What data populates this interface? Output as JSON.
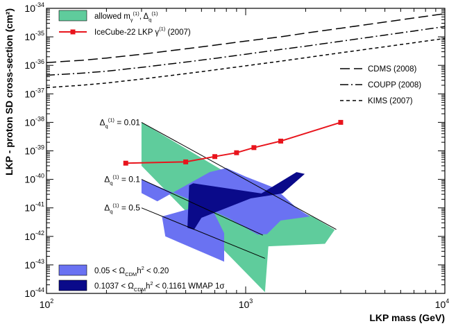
{
  "chart_data": {
    "type": "line",
    "xlabel": "LKP mass (GeV)",
    "ylabel": "LKP - proton SD cross-section (cm²)",
    "xscale": "log",
    "yscale": "log",
    "xlim": [
      100,
      10000
    ],
    "ylim": [
      1e-44,
      1e-34
    ],
    "x_ticks": [
      {
        "value": 100,
        "base": "10",
        "exp": "2"
      },
      {
        "value": 1000,
        "base": "10",
        "exp": "3"
      },
      {
        "value": 10000,
        "base": "10",
        "exp": "4"
      }
    ],
    "y_ticks": [
      {
        "value": 1e-44,
        "base": "10",
        "exp": "-44"
      },
      {
        "value": 1e-43,
        "base": "10",
        "exp": "-43"
      },
      {
        "value": 1e-42,
        "base": "10",
        "exp": "-42"
      },
      {
        "value": 1e-41,
        "base": "10",
        "exp": "-41"
      },
      {
        "value": 1e-40,
        "base": "10",
        "exp": "-40"
      },
      {
        "value": 1e-39,
        "base": "10",
        "exp": "-39"
      },
      {
        "value": 1e-38,
        "base": "10",
        "exp": "-38"
      },
      {
        "value": 1e-37,
        "base": "10",
        "exp": "-37"
      },
      {
        "value": 1e-36,
        "base": "10",
        "exp": "-36"
      },
      {
        "value": 1e-35,
        "base": "10",
        "exp": "-35"
      },
      {
        "value": 1e-34,
        "base": "10",
        "exp": "-34"
      }
    ],
    "colors": {
      "allowed": "#5fcc9c",
      "wmap_2sigma": "#6a72f2",
      "wmap_1sigma": "#0a0a8a",
      "icecube": "#e8141c",
      "limits": "#000000"
    },
    "series": [
      {
        "name": "CDMS (2008)",
        "style": "long-dash",
        "x": [
          100,
          150,
          200,
          300,
          500,
          700,
          1000,
          1500,
          2000,
          3000,
          5000,
          7000,
          10000
        ],
        "y": [
          1.25e-36,
          1.5e-36,
          1.8e-36,
          2.45e-36,
          3.8e-36,
          5.1e-36,
          7.1e-36,
          1e-35,
          1.35e-35,
          2e-35,
          3.3e-35,
          4.6e-35,
          6.5e-35
        ]
      },
      {
        "name": "COUPP (2008)",
        "style": "dash-dot",
        "x": [
          100,
          150,
          200,
          300,
          500,
          700,
          1000,
          1500,
          2000,
          3000,
          5000,
          7000,
          10000
        ],
        "y": [
          4.5e-37,
          5.3e-37,
          6.2e-37,
          8.5e-37,
          1.3e-36,
          1.75e-36,
          2.45e-36,
          3.6e-36,
          4.7e-36,
          7e-36,
          1.15e-35,
          1.6e-35,
          2.3e-35
        ]
      },
      {
        "name": "KIMS (2007)",
        "style": "short-dash",
        "x": [
          100,
          150,
          200,
          300,
          500,
          700,
          1000,
          1500,
          2000,
          3000,
          5000,
          7000,
          10000
        ],
        "y": [
          1.65e-37,
          2e-37,
          2.4e-37,
          3.3e-37,
          5.1e-37,
          6.9e-37,
          9.6e-37,
          1.4e-36,
          1.85e-36,
          2.75e-36,
          4.5e-36,
          6.2e-36,
          8.8e-36
        ]
      },
      {
        "name": "IceCube-22 LKP γ⁽¹⁾ (2007)",
        "style": "solid-square-markers",
        "x": [
          250,
          500,
          700,
          900,
          1100,
          1500,
          3000
        ],
        "y": [
          3.7e-40,
          4.1e-40,
          6.3e-40,
          8.6e-40,
          1.3e-39,
          2.2e-39,
          1e-38
        ]
      }
    ],
    "regions": [
      {
        "name": "allowed m_γ(1), Δ_q(1)",
        "color": "#5fcc9c",
        "polygon": [
          [
            300,
            1e-38
          ],
          [
            1200,
            3.2e-41
          ],
          [
            2200,
            4.6e-42
          ],
          [
            2800,
            1.7e-42
          ],
          [
            2500,
            5.5e-43
          ],
          [
            1300,
            4.5e-43
          ],
          [
            1250,
            1.1e-44
          ],
          [
            300,
            3e-40
          ]
        ]
      },
      {
        "name": "0.05 < Ω_CDM h² < 0.20",
        "color": "#6a72f2",
        "polygon": [
          [
            300,
            3.3e-41
          ],
          [
            360,
            1.7e-41
          ],
          [
            660,
            1.8e-40
          ],
          [
            800,
            2.5e-40
          ],
          [
            1000,
            1.25e-40
          ],
          [
            1400,
            5e-41
          ],
          [
            1800,
            1e-41
          ],
          [
            2100,
            5e-42
          ],
          [
            1500,
            3.6e-42
          ],
          [
            1280,
            1.2e-42
          ],
          [
            1150,
            1.15e-42
          ],
          [
            840,
            4e-42
          ],
          [
            600,
            1.2e-41
          ],
          [
            380,
            5e-42
          ],
          [
            395,
            1e-42
          ],
          [
            780,
            1.3e-43
          ],
          [
            780,
            1.3e-42
          ],
          [
            680,
            9e-42
          ],
          [
            300,
            1e-40
          ]
        ]
      },
      {
        "name": "0.1037 < Ω_CDM h² < 0.1161 WMAP 1σ",
        "color": "#0a0a8a",
        "polygon": [
          [
            510,
            2e-42
          ],
          [
            520,
            6.1e-41
          ],
          [
            545,
            7.3e-41
          ],
          [
            1200,
            3.2e-41
          ],
          [
            1800,
            1.8e-40
          ],
          [
            1980,
            1.55e-40
          ],
          [
            1530,
            3.2e-41
          ],
          [
            1060,
            2.15e-41
          ],
          [
            600,
            4.5e-42
          ],
          [
            550,
            1.7e-42
          ]
        ]
      }
    ],
    "boundary_lines": [
      {
        "label": "Δq(1) = 0.01",
        "x": [
          300,
          2850
        ],
        "y": [
          1e-38,
          1.75e-42
        ]
      },
      {
        "label": "Δq(1) = 0.1",
        "x": [
          300,
          1220
        ],
        "y": [
          1e-40,
          1.1e-42
        ]
      },
      {
        "label": "Δq(1) = 0.5",
        "x": [
          300,
          1250
        ],
        "y": [
          1e-41,
          1.7e-43
        ]
      }
    ],
    "legend_top_left": [
      {
        "kind": "patch",
        "color": "#5fcc9c",
        "label_main": "allowed m",
        "label_sub1": "γ",
        "label_sup1": "(1)",
        "label_mid": ", Δ",
        "label_sub2": "q",
        "label_sup2": "(1)"
      },
      {
        "kind": "line-marker",
        "color": "#e8141c",
        "label_main": "IceCube-22 LKP γ",
        "label_sup": "(1)",
        "label_tail": " (2007)"
      }
    ],
    "legend_right": [
      {
        "style": "long-dash",
        "label": "CDMS (2008)"
      },
      {
        "style": "dash-dot",
        "label": "COUPP (2008)"
      },
      {
        "style": "short-dash",
        "label": "KIMS (2007)"
      }
    ],
    "legend_bottom_left": [
      {
        "color": "#6a72f2",
        "label_pre": "0.05 < Ω",
        "label_sub": "CDM",
        "label_mid": "h",
        "label_sup": "2",
        "label_post": " < 0.20"
      },
      {
        "color": "#0a0a8a",
        "label_pre": "0.1037 < Ω",
        "label_sub": "CDM",
        "label_mid": "h",
        "label_sup": "2",
        "label_post": " < 0.1161 WMAP 1σ"
      }
    ],
    "annotations": [
      {
        "pre": "Δ",
        "sub": "q",
        "sup": "(1)",
        "post": " = 0.01",
        "at": [
          300,
          1e-38
        ]
      },
      {
        "pre": "Δ",
        "sub": "q",
        "sup": "(1)",
        "post": " = 0.1",
        "at": [
          300,
          1e-40
        ]
      },
      {
        "pre": "Δ",
        "sub": "q",
        "sup": "(1)",
        "post": " = 0.5",
        "at": [
          300,
          1e-41
        ]
      }
    ]
  }
}
